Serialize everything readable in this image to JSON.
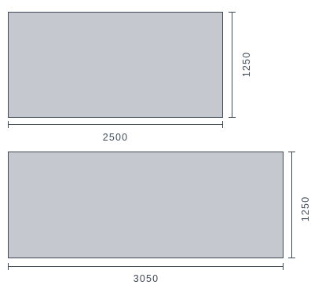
{
  "colors": {
    "panel_fill": "#c5c9cf",
    "panel_stroke": "#3f4a55",
    "dimension_line": "#3f4a55",
    "text": "#3f4a55"
  },
  "panels": [
    {
      "width_label": "2500",
      "height_label": "1250"
    },
    {
      "width_label": "3050",
      "height_label": "1250"
    }
  ]
}
